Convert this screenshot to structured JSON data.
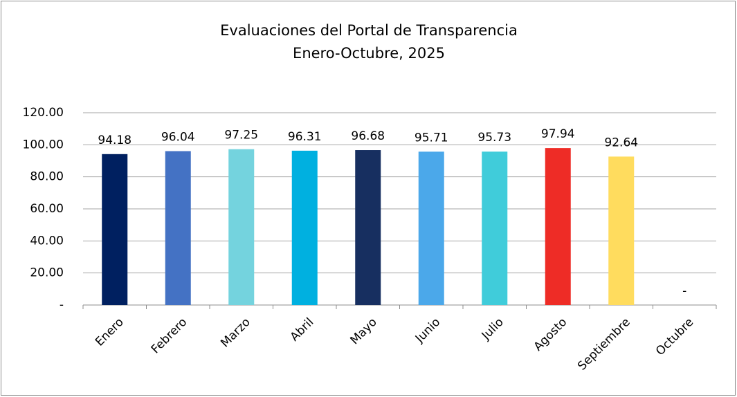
{
  "chart_data": {
    "type": "bar",
    "title": "Evaluaciones del Portal de Transparencia",
    "subtitle": "Enero-Octubre, 2025",
    "categories": [
      "Enero",
      "Febrero",
      "Marzo",
      "Abril",
      "Mayo",
      "Junio",
      "Julio",
      "Agosto",
      "Septiembre",
      "Octubre"
    ],
    "values": [
      94.18,
      96.04,
      97.25,
      96.31,
      96.68,
      95.71,
      95.73,
      97.94,
      92.64,
      0
    ],
    "value_labels": [
      "94.18",
      "96.04",
      "97.25",
      "96.31",
      "96.68",
      "95.71",
      "95.73",
      "97.94",
      "92.64",
      "-"
    ],
    "colors": [
      "#002060",
      "#4472c4",
      "#74d3de",
      "#00b0e0",
      "#172f60",
      "#4ba8ea",
      "#40ccda",
      "#ee2c26",
      "#ffdc5e",
      "#cccccc"
    ],
    "ylim": [
      0,
      120
    ],
    "yticks": [
      {
        "value": 0,
        "label": "-"
      },
      {
        "value": 20,
        "label": "20.00"
      },
      {
        "value": 40,
        "label": "40.00"
      },
      {
        "value": 60,
        "label": "60.00"
      },
      {
        "value": 80,
        "label": "80.00"
      },
      {
        "value": 100,
        "label": "100.00"
      },
      {
        "value": 120,
        "label": "120.00"
      }
    ],
    "grid": true
  }
}
